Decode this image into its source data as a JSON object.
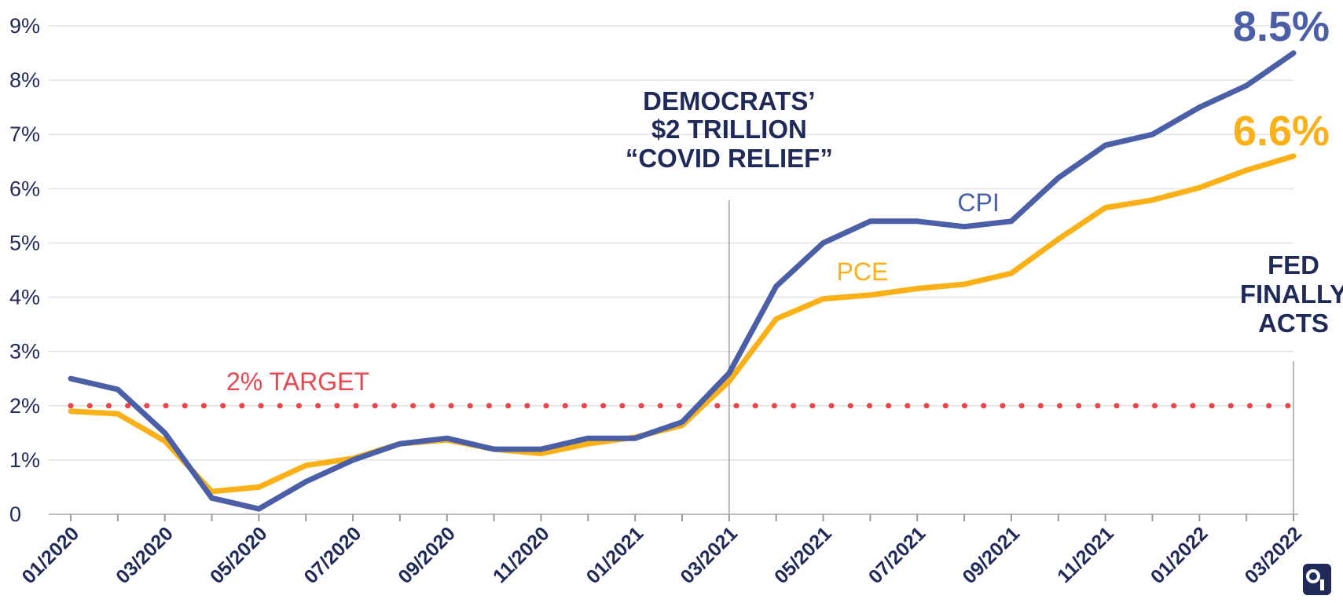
{
  "chart_data": {
    "type": "line",
    "x": [
      "01/2020",
      "02/2020",
      "03/2020",
      "04/2020",
      "05/2020",
      "06/2020",
      "07/2020",
      "08/2020",
      "09/2020",
      "10/2020",
      "11/2020",
      "12/2020",
      "01/2021",
      "02/2021",
      "03/2021",
      "04/2021",
      "05/2021",
      "06/2021",
      "07/2021",
      "08/2021",
      "09/2021",
      "10/2021",
      "11/2021",
      "12/2021",
      "01/2022",
      "02/2022",
      "03/2022"
    ],
    "x_tick_labels": [
      "01/2020",
      "03/2020",
      "05/2020",
      "07/2020",
      "09/2020",
      "11/2020",
      "01/2021",
      "03/2021",
      "05/2021",
      "07/2021",
      "09/2021",
      "11/2021",
      "01/2022",
      "03/2022"
    ],
    "y_tick_labels": [
      "0",
      "1%",
      "2%",
      "3%",
      "4%",
      "5%",
      "6%",
      "7%",
      "8%",
      "9%"
    ],
    "ylim": [
      0,
      9
    ],
    "series": [
      {
        "name": "CPI",
        "color": "#4a5fa8",
        "values": [
          2.5,
          2.3,
          1.5,
          0.3,
          0.1,
          0.6,
          1.0,
          1.3,
          1.4,
          1.2,
          1.2,
          1.4,
          1.4,
          1.7,
          2.6,
          4.2,
          5.0,
          5.4,
          5.4,
          5.3,
          5.4,
          6.2,
          6.8,
          7.0,
          7.5,
          7.9,
          8.5
        ]
      },
      {
        "name": "PCE",
        "color": "#fbb116",
        "values": [
          1.9,
          1.85,
          1.35,
          0.42,
          0.5,
          0.9,
          1.03,
          1.3,
          1.37,
          1.2,
          1.12,
          1.3,
          1.42,
          1.64,
          2.45,
          3.6,
          3.97,
          4.04,
          4.16,
          4.24,
          4.44,
          5.07,
          5.65,
          5.79,
          6.02,
          6.34,
          6.6
        ]
      }
    ],
    "target": {
      "value": 2,
      "label": "2% TARGET",
      "color": "#e8454f"
    },
    "end_labels": {
      "CPI": "8.5%",
      "PCE": "6.6%"
    },
    "annotations": [
      {
        "x": "03/2021",
        "lines": [
          "DEMOCRATS’",
          "$2 TRILLION",
          "“COVID RELIEF”"
        ]
      },
      {
        "x": "03/2022",
        "lines": [
          "FED",
          "FINALLY",
          "ACTS"
        ]
      }
    ],
    "grid": true
  }
}
